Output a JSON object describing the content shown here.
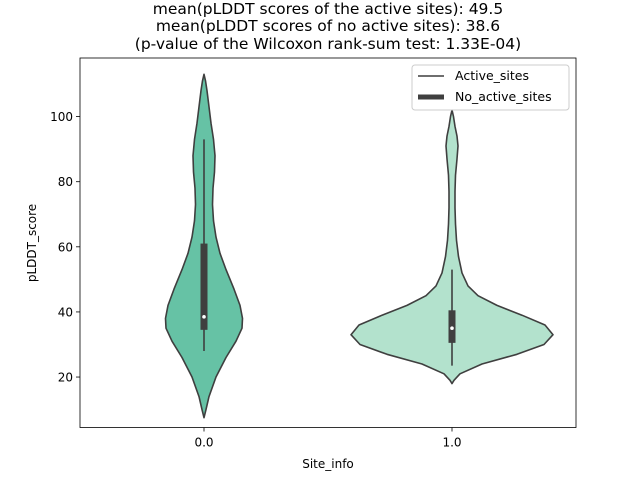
{
  "chart_data": {
    "type": "violin",
    "title": [
      "mean(pLDDT scores of the active sites): 49.5",
      "mean(pLDDT scores of no active sites): 38.6",
      "(p-value of the Wilcoxon rank-sum test: 1.33E-04)"
    ],
    "xlabel": "Site_info",
    "ylabel": "pLDDT_score",
    "ylim": [
      4.5,
      118
    ],
    "yticks": [
      20,
      40,
      60,
      80,
      100
    ],
    "categories": [
      "0.0",
      "1.0"
    ],
    "legend": {
      "location": "top-right",
      "entries": [
        {
          "label": "Active_sites",
          "style": "thin-line"
        },
        {
          "label": "No_active_sites",
          "style": "thick-line"
        }
      ]
    },
    "series": [
      {
        "name": "Active_sites",
        "category": "0.0",
        "color": "#66c2a5",
        "range": [
          7.5,
          113
        ],
        "quartiles": [
          34.5,
          38.5,
          61
        ],
        "whiskers": [
          28,
          93
        ],
        "density": [
          {
            "y": 7.5,
            "hw": 0
          },
          {
            "y": 10,
            "hw": 2
          },
          {
            "y": 14,
            "hw": 5
          },
          {
            "y": 20,
            "hw": 12
          },
          {
            "y": 26,
            "hw": 22
          },
          {
            "y": 31,
            "hw": 32
          },
          {
            "y": 35,
            "hw": 38
          },
          {
            "y": 38,
            "hw": 38.5
          },
          {
            "y": 42,
            "hw": 36
          },
          {
            "y": 47,
            "hw": 30
          },
          {
            "y": 53,
            "hw": 22
          },
          {
            "y": 58,
            "hw": 16
          },
          {
            "y": 63,
            "hw": 12
          },
          {
            "y": 68,
            "hw": 9.5
          },
          {
            "y": 73,
            "hw": 8.5
          },
          {
            "y": 78,
            "hw": 9
          },
          {
            "y": 83,
            "hw": 10.5
          },
          {
            "y": 88,
            "hw": 11
          },
          {
            "y": 93,
            "hw": 9.5
          },
          {
            "y": 98,
            "hw": 7
          },
          {
            "y": 103,
            "hw": 5
          },
          {
            "y": 108,
            "hw": 3
          },
          {
            "y": 111,
            "hw": 1.5
          },
          {
            "y": 113,
            "hw": 0
          }
        ]
      },
      {
        "name": "No_active_sites",
        "category": "1.0",
        "color": "#b3e2cd",
        "range": [
          18,
          102
        ],
        "quartiles": [
          30.5,
          35,
          40.5
        ],
        "whiskers": [
          23.5,
          53
        ],
        "density": [
          {
            "y": 18,
            "hw": 0
          },
          {
            "y": 19,
            "hw": 2
          },
          {
            "y": 21,
            "hw": 8
          },
          {
            "y": 24,
            "hw": 30
          },
          {
            "y": 27,
            "hw": 65
          },
          {
            "y": 30,
            "hw": 92
          },
          {
            "y": 33,
            "hw": 101
          },
          {
            "y": 36,
            "hw": 93
          },
          {
            "y": 39,
            "hw": 70
          },
          {
            "y": 42,
            "hw": 45
          },
          {
            "y": 45,
            "hw": 26
          },
          {
            "y": 48,
            "hw": 16
          },
          {
            "y": 52,
            "hw": 10
          },
          {
            "y": 57,
            "hw": 6.5
          },
          {
            "y": 62,
            "hw": 4.5
          },
          {
            "y": 67,
            "hw": 3.5
          },
          {
            "y": 72,
            "hw": 3
          },
          {
            "y": 77,
            "hw": 3
          },
          {
            "y": 82,
            "hw": 3.5
          },
          {
            "y": 87,
            "hw": 5
          },
          {
            "y": 91,
            "hw": 6
          },
          {
            "y": 94,
            "hw": 5
          },
          {
            "y": 97,
            "hw": 3
          },
          {
            "y": 100,
            "hw": 1.5
          },
          {
            "y": 102,
            "hw": 0
          }
        ]
      }
    ]
  },
  "colors": {
    "outline": "#3f3f3f",
    "box": "#3f3f3f",
    "median": "#ffffff"
  }
}
